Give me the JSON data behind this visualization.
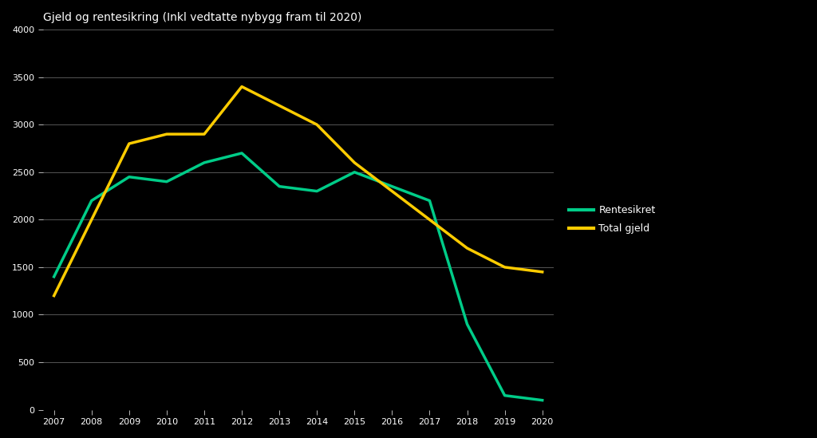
{
  "title": "Gjeld og rentesikring (Inkl vedtatte nybygg fram til 2020)",
  "background_color": "#000000",
  "plot_bg_color": "#000000",
  "grid_color": "#555555",
  "text_color": "#ffffff",
  "green_color": "#00cc88",
  "yellow_color": "#ffcc00",
  "x_labels": [
    "2007",
    "2008",
    "2009",
    "2010",
    "2011",
    "2012",
    "2013",
    "2014",
    "2015",
    "2016",
    "2017",
    "2018",
    "2019",
    "2020"
  ],
  "green_values": [
    1400,
    2200,
    2450,
    2400,
    2600,
    2700,
    2350,
    2300,
    2500,
    2350,
    2200,
    900,
    150,
    100
  ],
  "yellow_values": [
    1200,
    2000,
    2800,
    2900,
    2900,
    3400,
    3200,
    3000,
    2600,
    2300,
    2000,
    1700,
    1500,
    1450
  ],
  "ylim": [
    0,
    4000
  ],
  "yticks": [
    0,
    500,
    1000,
    1500,
    2000,
    2500,
    3000,
    3500,
    4000
  ],
  "legend_green_label": "Rentesikret",
  "legend_yellow_label": "Total gjeld",
  "line_width": 2.5
}
